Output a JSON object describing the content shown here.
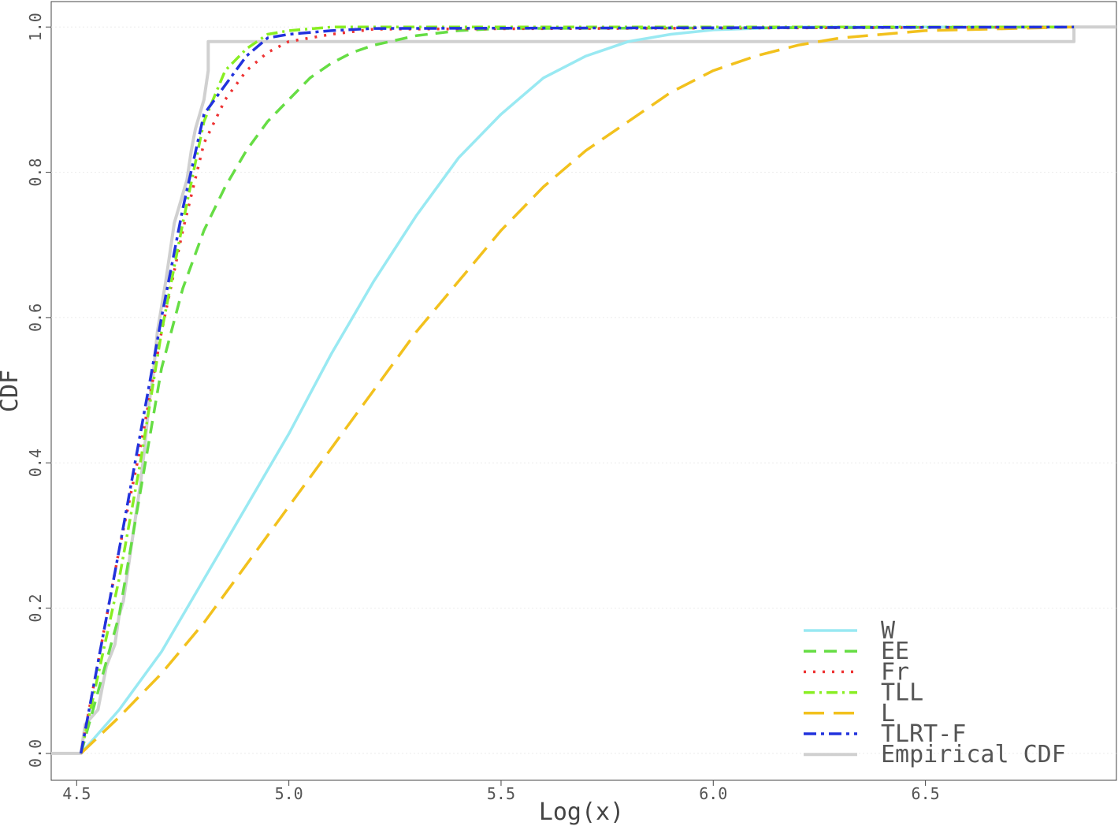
{
  "chart_data": {
    "type": "line",
    "xlabel": "Log(x)",
    "ylabel": "CDF",
    "xlim": [
      4.44,
      6.95
    ],
    "ylim": [
      -0.037,
      1.035
    ],
    "x_ticks": [
      4.5,
      5.0,
      5.5,
      6.0,
      6.5
    ],
    "x_tick_labels": [
      "4.5",
      "5.0",
      "5.5",
      "6.0",
      "6.5"
    ],
    "y_ticks": [
      0.0,
      0.2,
      0.4,
      0.6,
      0.8,
      1.0
    ],
    "y_tick_labels": [
      "0.0",
      "0.2",
      "0.4",
      "0.6",
      "0.8",
      "1.0"
    ],
    "grid": true,
    "legend_position": "bottom-right",
    "series": [
      {
        "name": "W",
        "color": "#99e9f2",
        "dash": "solid",
        "points": [
          [
            4.51,
            0.0
          ],
          [
            4.6,
            0.06
          ],
          [
            4.7,
            0.14
          ],
          [
            4.8,
            0.24
          ],
          [
            4.9,
            0.34
          ],
          [
            5.0,
            0.44
          ],
          [
            5.1,
            0.55
          ],
          [
            5.2,
            0.65
          ],
          [
            5.3,
            0.74
          ],
          [
            5.4,
            0.82
          ],
          [
            5.5,
            0.88
          ],
          [
            5.6,
            0.93
          ],
          [
            5.7,
            0.96
          ],
          [
            5.8,
            0.98
          ],
          [
            5.9,
            0.99
          ],
          [
            6.0,
            0.996
          ],
          [
            6.2,
            1.0
          ],
          [
            6.85,
            1.0
          ]
        ]
      },
      {
        "name": "EE",
        "color": "#66dd44",
        "dash": "dashed",
        "points": [
          [
            4.51,
            0.0
          ],
          [
            4.6,
            0.19
          ],
          [
            4.65,
            0.36
          ],
          [
            4.7,
            0.53
          ],
          [
            4.75,
            0.64
          ],
          [
            4.8,
            0.72
          ],
          [
            4.85,
            0.78
          ],
          [
            4.9,
            0.83
          ],
          [
            4.95,
            0.87
          ],
          [
            5.0,
            0.9
          ],
          [
            5.05,
            0.93
          ],
          [
            5.1,
            0.95
          ],
          [
            5.15,
            0.965
          ],
          [
            5.2,
            0.975
          ],
          [
            5.3,
            0.988
          ],
          [
            5.4,
            0.995
          ],
          [
            5.5,
            0.998
          ],
          [
            6.85,
            1.0
          ]
        ]
      },
      {
        "name": "Fr",
        "color": "#ee3333",
        "dash": "dotted",
        "points": [
          [
            4.51,
            0.0
          ],
          [
            4.6,
            0.28
          ],
          [
            4.65,
            0.42
          ],
          [
            4.7,
            0.58
          ],
          [
            4.75,
            0.72
          ],
          [
            4.8,
            0.84
          ],
          [
            4.85,
            0.9
          ],
          [
            4.9,
            0.94
          ],
          [
            4.95,
            0.965
          ],
          [
            5.0,
            0.98
          ],
          [
            5.1,
            0.99
          ],
          [
            5.2,
            0.997
          ],
          [
            6.85,
            1.0
          ]
        ]
      },
      {
        "name": "TLL",
        "color": "#88ee22",
        "dash": "dashdot",
        "points": [
          [
            4.51,
            0.0
          ],
          [
            4.6,
            0.24
          ],
          [
            4.65,
            0.4
          ],
          [
            4.7,
            0.58
          ],
          [
            4.75,
            0.73
          ],
          [
            4.8,
            0.87
          ],
          [
            4.85,
            0.94
          ],
          [
            4.9,
            0.97
          ],
          [
            4.95,
            0.99
          ],
          [
            5.0,
            0.995
          ],
          [
            5.1,
            1.0
          ],
          [
            6.85,
            1.0
          ]
        ]
      },
      {
        "name": "L",
        "color": "#f2c11d",
        "dash": "longdash",
        "points": [
          [
            4.51,
            0.0
          ],
          [
            4.6,
            0.05
          ],
          [
            4.7,
            0.11
          ],
          [
            4.8,
            0.18
          ],
          [
            4.9,
            0.26
          ],
          [
            5.0,
            0.34
          ],
          [
            5.1,
            0.42
          ],
          [
            5.2,
            0.5
          ],
          [
            5.3,
            0.58
          ],
          [
            5.4,
            0.65
          ],
          [
            5.5,
            0.72
          ],
          [
            5.6,
            0.78
          ],
          [
            5.7,
            0.83
          ],
          [
            5.8,
            0.87
          ],
          [
            5.9,
            0.91
          ],
          [
            6.0,
            0.94
          ],
          [
            6.1,
            0.96
          ],
          [
            6.2,
            0.975
          ],
          [
            6.3,
            0.985
          ],
          [
            6.5,
            0.995
          ],
          [
            6.85,
            1.0
          ]
        ]
      },
      {
        "name": "TLRT-F",
        "color": "#2233dd",
        "dash": "twodash",
        "points": [
          [
            4.51,
            0.0
          ],
          [
            4.6,
            0.28
          ],
          [
            4.65,
            0.44
          ],
          [
            4.7,
            0.6
          ],
          [
            4.75,
            0.75
          ],
          [
            4.8,
            0.88
          ],
          [
            4.85,
            0.92
          ],
          [
            4.9,
            0.96
          ],
          [
            4.95,
            0.985
          ],
          [
            5.0,
            0.99
          ],
          [
            5.1,
            0.995
          ],
          [
            5.2,
            0.998
          ],
          [
            6.85,
            1.0
          ]
        ]
      },
      {
        "name": "Empirical CDF",
        "color": "#d0d0d0",
        "dash": "solid",
        "points": [
          [
            4.44,
            0.0
          ],
          [
            4.51,
            0.0
          ],
          [
            4.52,
            0.04
          ],
          [
            4.55,
            0.06
          ],
          [
            4.57,
            0.12
          ],
          [
            4.59,
            0.15
          ],
          [
            4.6,
            0.19
          ],
          [
            4.61,
            0.21
          ],
          [
            4.62,
            0.25
          ],
          [
            4.63,
            0.29
          ],
          [
            4.64,
            0.33
          ],
          [
            4.65,
            0.37
          ],
          [
            4.66,
            0.42
          ],
          [
            4.67,
            0.48
          ],
          [
            4.68,
            0.52
          ],
          [
            4.69,
            0.58
          ],
          [
            4.71,
            0.65
          ],
          [
            4.72,
            0.69
          ],
          [
            4.73,
            0.73
          ],
          [
            4.74,
            0.75
          ],
          [
            4.75,
            0.77
          ],
          [
            4.76,
            0.79
          ],
          [
            4.77,
            0.83
          ],
          [
            4.78,
            0.86
          ],
          [
            4.79,
            0.88
          ],
          [
            4.8,
            0.9
          ],
          [
            4.81,
            0.94
          ],
          [
            4.81,
            0.98
          ],
          [
            6.85,
            0.98
          ],
          [
            6.85,
            1.0
          ],
          [
            6.95,
            1.0
          ]
        ]
      }
    ]
  }
}
